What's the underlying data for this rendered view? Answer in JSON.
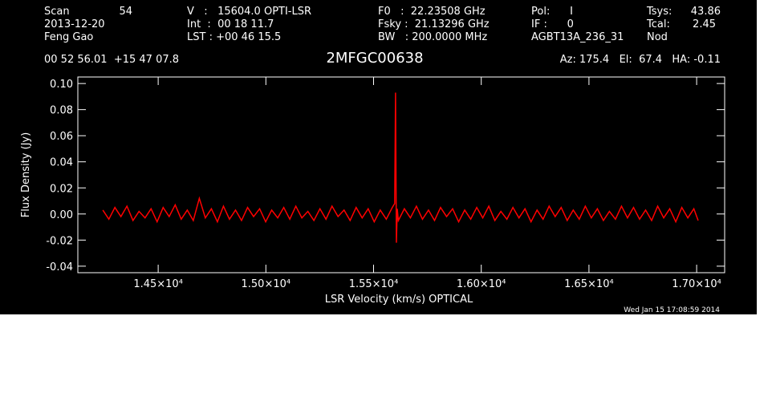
{
  "chart_data": {
    "type": "line",
    "title": "2MFGC00638",
    "header": {
      "scan_label": "Scan",
      "scan": "54",
      "date": "2013-12-20",
      "observer": "Feng Gao",
      "velocity": "V   :   15604.0 OPTI-LSR",
      "integration": "Int  :  00 18 11.7",
      "lst": "LST : +00 46 15.5",
      "f0": "F0   :  22.23508 GHz",
      "fsky": "Fsky :  21.13296 GHz",
      "bw": "BW   : 200.0000 MHz",
      "pol": "Pol:      I",
      "if": "IF :      0",
      "project": "AGBT13A_236_31",
      "tsys_label": "Tsys:",
      "tsys": "43.86",
      "tcal_label": "Tcal:",
      "tcal": "2.45",
      "procedure": "Nod",
      "coords": "00 52 56.01  +15 47 07.8",
      "pointing": "Az: 175.4   El:  67.4   HA: -0.11"
    },
    "footer": "Wed Jan 15 17:08:59 2014",
    "x_label": "LSR Velocity (km/s) OPTICAL",
    "y_label": "Flux Density (Jy)",
    "color": "#ff0000",
    "xlim": [
      14127,
      17130
    ],
    "ylim": [
      -0.045,
      0.105
    ],
    "xticks": [
      {
        "value": 14500,
        "label": "1.45×10⁴"
      },
      {
        "value": 15000,
        "label": "1.50×10⁴"
      },
      {
        "value": 15500,
        "label": "1.55×10⁴"
      },
      {
        "value": 16000,
        "label": "1.60×10⁴"
      },
      {
        "value": 16500,
        "label": "1.65×10⁴"
      },
      {
        "value": 17000,
        "label": "1.70×10⁴"
      }
    ],
    "yticks": [
      {
        "value": 0.1,
        "label": "0.10"
      },
      {
        "value": 0.08,
        "label": "0.08"
      },
      {
        "value": 0.06,
        "label": "0.06"
      },
      {
        "value": 0.04,
        "label": "0.04"
      },
      {
        "value": 0.02,
        "label": "0.02"
      },
      {
        "value": 0,
        "label": "0.00"
      },
      {
        "value": -0.02,
        "label": "-0.02"
      },
      {
        "value": -0.04,
        "label": "-0.04"
      }
    ],
    "x": [
      14243,
      14271,
      14299,
      14327,
      14355,
      14383,
      14411,
      14439,
      14467,
      14495,
      14523,
      14551,
      14579,
      14607,
      14635,
      14663,
      14691,
      14719,
      14747,
      14775,
      14803,
      14831,
      14859,
      14887,
      14915,
      14943,
      14971,
      14999,
      15027,
      15055,
      15083,
      15111,
      15139,
      15167,
      15195,
      15223,
      15251,
      15279,
      15307,
      15335,
      15363,
      15391,
      15419,
      15447,
      15475,
      15503,
      15531,
      15559,
      15587,
      15598,
      15602,
      15606,
      15610,
      15615,
      15643,
      15671,
      15699,
      15727,
      15755,
      15783,
      15811,
      15839,
      15867,
      15895,
      15923,
      15951,
      15979,
      16007,
      16035,
      16063,
      16091,
      16119,
      16147,
      16175,
      16203,
      16231,
      16259,
      16287,
      16315,
      16343,
      16371,
      16399,
      16427,
      16455,
      16483,
      16511,
      16539,
      16567,
      16595,
      16623,
      16651,
      16679,
      16707,
      16735,
      16763,
      16791,
      16819,
      16847,
      16875,
      16903,
      16931,
      16959,
      16987,
      17007
    ],
    "values": [
      0.003,
      -0.004,
      0.005,
      -0.002,
      0.006,
      -0.005,
      0.002,
      -0.003,
      0.004,
      -0.006,
      0.005,
      -0.002,
      0.007,
      -0.004,
      0.003,
      -0.005,
      0.012,
      -0.003,
      0.004,
      -0.006,
      0.006,
      -0.004,
      0.003,
      -0.005,
      0.005,
      -0.002,
      0.004,
      -0.006,
      0.003,
      -0.003,
      0.005,
      -0.004,
      0.006,
      -0.003,
      0.002,
      -0.005,
      0.004,
      -0.004,
      0.006,
      -0.002,
      0.003,
      -0.005,
      0.005,
      -0.003,
      0.004,
      -0.006,
      0.003,
      -0.004,
      0.005,
      0.008,
      0.093,
      -0.022,
      0.004,
      -0.005,
      0.004,
      -0.003,
      0.006,
      -0.004,
      0.003,
      -0.005,
      0.005,
      -0.002,
      0.004,
      -0.006,
      0.003,
      -0.004,
      0.005,
      -0.003,
      0.006,
      -0.005,
      0.002,
      -0.004,
      0.005,
      -0.003,
      0.004,
      -0.006,
      0.003,
      -0.004,
      0.006,
      -0.002,
      0.005,
      -0.005,
      0.003,
      -0.004,
      0.006,
      -0.003,
      0.004,
      -0.005,
      0.002,
      -0.004,
      0.006,
      -0.003,
      0.005,
      -0.004,
      0.003,
      -0.005,
      0.006,
      -0.003,
      0.004,
      -0.006,
      0.005,
      -0.003,
      0.004,
      -0.005
    ]
  }
}
